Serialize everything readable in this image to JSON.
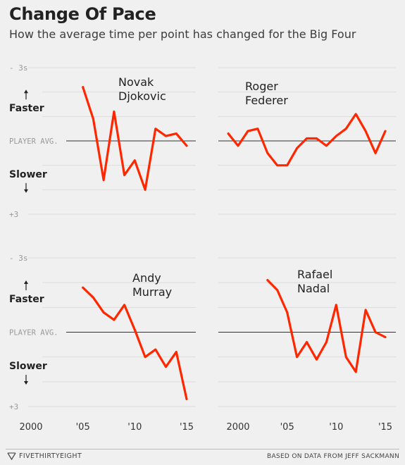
{
  "title": "Change Of Pace",
  "subtitle": "How the average time per point has changed for the Big Four",
  "footer": {
    "logo_text": "FIVETHIRTYEIGHT",
    "credit": "BASED ON DATA FROM JEFF SACKMANN"
  },
  "colors": {
    "line": "#ff2700",
    "background": "#f0f0f0",
    "grid": "#dcdcdc",
    "baseline": "#333333"
  },
  "chart_data": {
    "type": "line",
    "x_tick_labels": [
      "2000",
      "'05",
      "'10",
      "'15"
    ],
    "x_ticks": [
      2000,
      2005,
      2010,
      2015
    ],
    "xlim": [
      1999,
      2015.5
    ],
    "y_tick_labels": [
      "- 3s",
      "PLAYER AVG.",
      "+3"
    ],
    "y_ticks": [
      -3,
      0,
      3
    ],
    "ylim": [
      -3,
      3
    ],
    "y_direction_labels": {
      "up": "Faster",
      "down": "Slower"
    },
    "players": [
      {
        "name": "Novak Djokovic",
        "x": [
          2005,
          2006,
          2007,
          2008,
          2009,
          2010,
          2011,
          2012,
          2013,
          2014,
          2015
        ],
        "y": [
          -2.2,
          -0.9,
          1.6,
          -1.2,
          1.4,
          0.8,
          2.0,
          -0.5,
          -0.2,
          -0.3,
          0.2
        ]
      },
      {
        "name": "Roger Federer",
        "x": [
          1999,
          2000,
          2001,
          2002,
          2003,
          2004,
          2005,
          2006,
          2007,
          2008,
          2009,
          2010,
          2011,
          2012,
          2013,
          2014,
          2015
        ],
        "y": [
          -0.3,
          0.2,
          -0.4,
          -0.5,
          0.5,
          1.0,
          1.0,
          0.3,
          -0.1,
          -0.1,
          0.2,
          -0.2,
          -0.5,
          -1.1,
          -0.4,
          0.5,
          -0.4
        ]
      },
      {
        "name": "Andy Murray",
        "x": [
          2005,
          2006,
          2007,
          2008,
          2009,
          2010,
          2011,
          2012,
          2013,
          2014,
          2015
        ],
        "y": [
          -1.8,
          -1.4,
          -0.8,
          -0.5,
          -1.1,
          -0.1,
          1.0,
          0.7,
          1.4,
          0.8,
          2.7
        ]
      },
      {
        "name": "Rafael Nadal",
        "x": [
          2003,
          2004,
          2005,
          2006,
          2007,
          2008,
          2009,
          2010,
          2011,
          2012,
          2013,
          2014,
          2015
        ],
        "y": [
          -2.1,
          -1.7,
          -0.8,
          1.0,
          0.4,
          1.1,
          0.4,
          -1.1,
          1.0,
          1.6,
          -0.9,
          0.0,
          0.2
        ]
      }
    ]
  }
}
